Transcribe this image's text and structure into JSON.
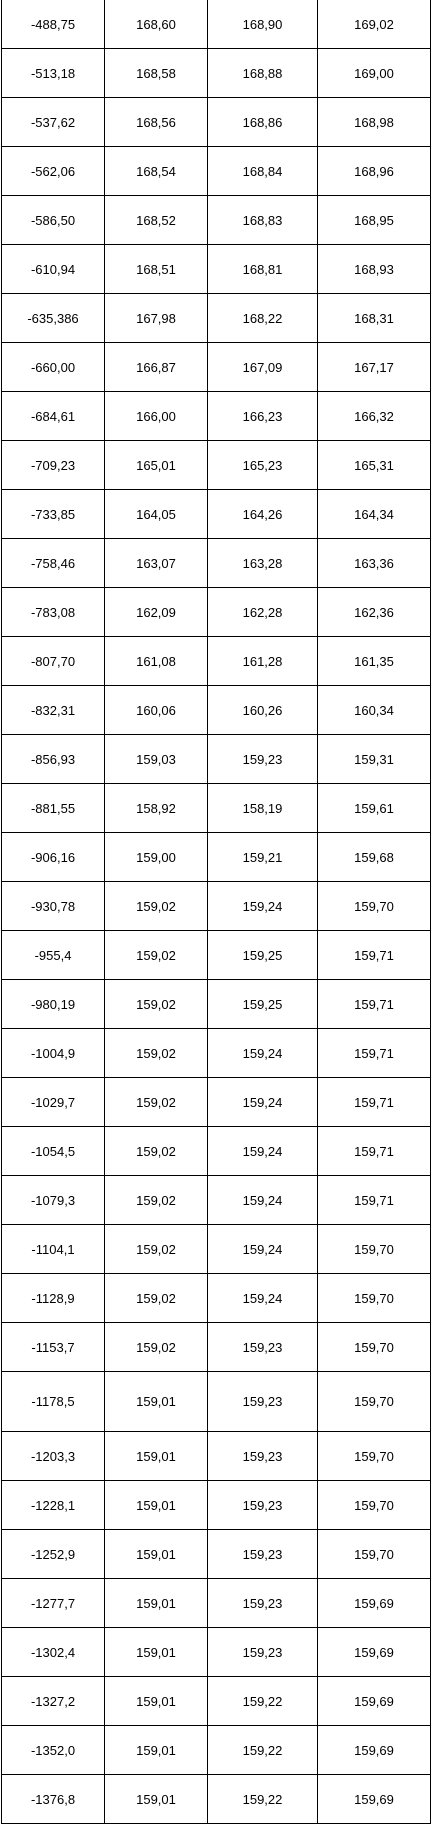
{
  "table": {
    "rows": [
      [
        "-488,75",
        "168,60",
        "168,90",
        "169,02"
      ],
      [
        "-513,18",
        "168,58",
        "168,88",
        "169,00"
      ],
      [
        "-537,62",
        "168,56",
        "168,86",
        "168,98"
      ],
      [
        "-562,06",
        "168,54",
        "168,84",
        "168,96"
      ],
      [
        "-586,50",
        "168,52",
        "168,83",
        "168,95"
      ],
      [
        "-610,94",
        "168,51",
        "168,81",
        "168,93"
      ],
      [
        "-635,386",
        "167,98",
        "168,22",
        "168,31"
      ],
      [
        "-660,00",
        "166,87",
        "167,09",
        "167,17"
      ],
      [
        "-684,61",
        "166,00",
        "166,23",
        "166,32"
      ],
      [
        "-709,23",
        "165,01",
        "165,23",
        "165,31"
      ],
      [
        "-733,85",
        "164,05",
        "164,26",
        "164,34"
      ],
      [
        "-758,46",
        "163,07",
        "163,28",
        "163,36"
      ],
      [
        "-783,08",
        "162,09",
        "162,28",
        "162,36"
      ],
      [
        "-807,70",
        "161,08",
        "161,28",
        "161,35"
      ],
      [
        "-832,31",
        "160,06",
        "160,26",
        "160,34"
      ],
      [
        "-856,93",
        "159,03",
        "159,23",
        "159,31"
      ],
      [
        "-881,55",
        "158,92",
        "158,19",
        "159,61"
      ],
      [
        "-906,16",
        "159,00",
        "159,21",
        "159,68"
      ],
      [
        "-930,78",
        "159,02",
        "159,24",
        "159,70"
      ],
      [
        "-955,4",
        "159,02",
        "159,25",
        "159,71"
      ],
      [
        "-980,19",
        "159,02",
        "159,25",
        "159,71"
      ],
      [
        "-1004,9",
        "159,02",
        "159,24",
        "159,71"
      ],
      [
        "-1029,7",
        "159,02",
        "159,24",
        "159,71"
      ],
      [
        "-1054,5",
        "159,02",
        "159,24",
        "159,71"
      ],
      [
        "-1079,3",
        "159,02",
        "159,24",
        "159,71"
      ],
      [
        "-1104,1",
        "159,02",
        "159,24",
        "159,70"
      ],
      [
        "-1128,9",
        "159,02",
        "159,24",
        "159,70"
      ],
      [
        "-1153,7",
        "159,02",
        "159,23",
        "159,70"
      ],
      [
        "-1178,5",
        "159,01",
        "159,23",
        "159,70"
      ],
      [
        "-1203,3",
        "159,01",
        "159,23",
        "159,70"
      ],
      [
        "-1228,1",
        "159,01",
        "159,23",
        "159,70"
      ],
      [
        "-1252,9",
        "159,01",
        "159,23",
        "159,70"
      ],
      [
        "-1277,7",
        "159,01",
        "159,23",
        "159,69"
      ],
      [
        "-1302,4",
        "159,01",
        "159,23",
        "159,69"
      ],
      [
        "-1327,2",
        "159,01",
        "159,22",
        "159,69"
      ],
      [
        "-1352,0",
        "159,01",
        "159,22",
        "159,69"
      ],
      [
        "-1376,8",
        "159,01",
        "159,22",
        "159,69"
      ]
    ]
  }
}
